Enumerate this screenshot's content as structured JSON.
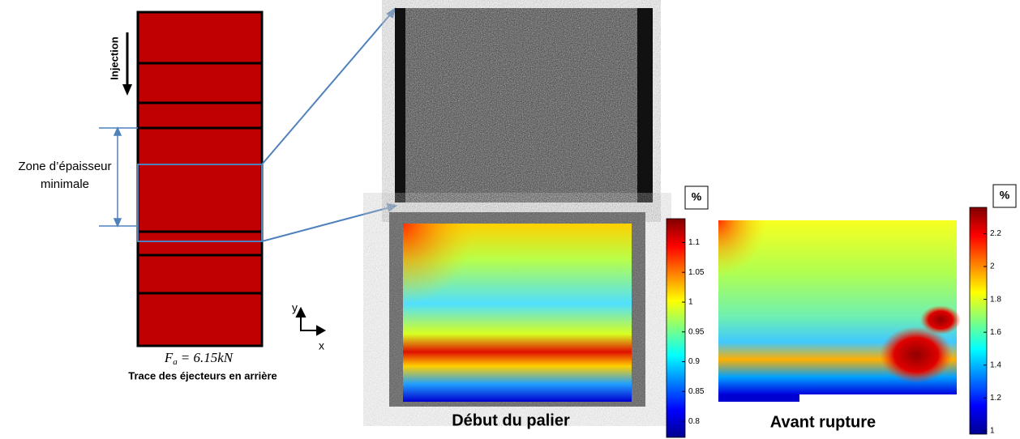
{
  "left_panel": {
    "injection_label": "Injection",
    "zone_label_line1": "Zone d’épaisseur",
    "zone_label_line2": "minimale",
    "formula": {
      "symbol": "F",
      "subscript": "a",
      "rest": "= 6.15kN"
    },
    "caption": "Trace des éjecteurs en arrière",
    "axis_y": "y",
    "axis_x": "x"
  },
  "maps": [
    {
      "caption": "Début du palier"
    },
    {
      "caption": "Avant rupture"
    }
  ],
  "colorbars": [
    {
      "title": "%",
      "lim": [
        0.773,
        1.14
      ],
      "ticks": [
        0.8,
        0.85,
        0.9,
        0.95,
        1,
        1.05,
        1.1
      ]
    },
    {
      "title": "%",
      "lim": [
        0.98,
        2.36
      ],
      "ticks": [
        1,
        1.2,
        1.4,
        1.6,
        1.8,
        2,
        2.2
      ]
    }
  ]
}
